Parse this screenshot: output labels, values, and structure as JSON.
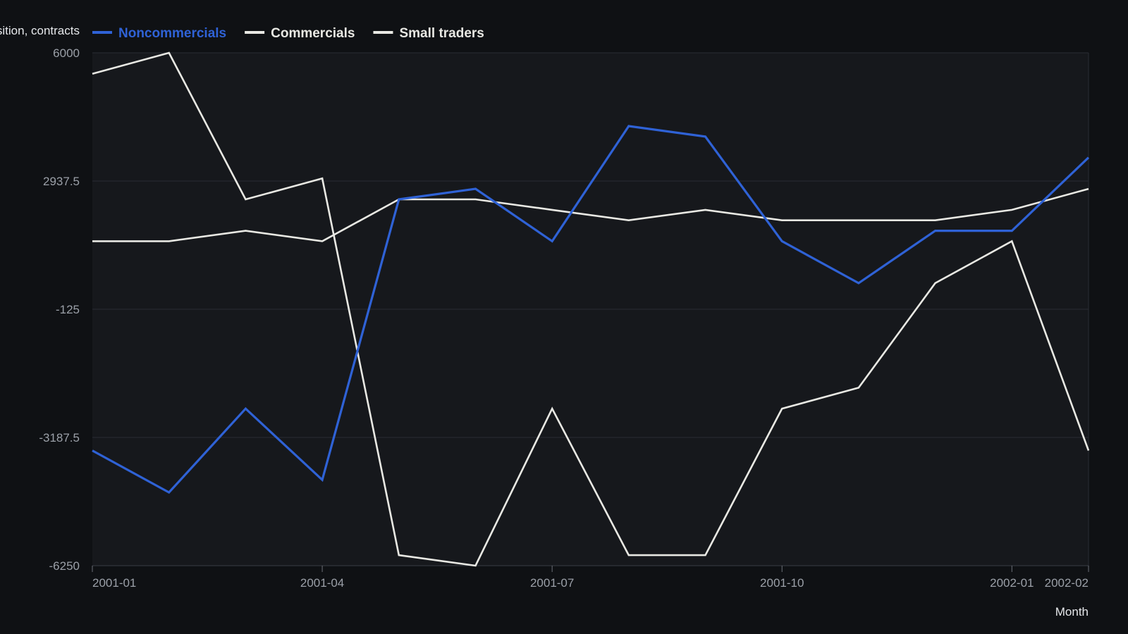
{
  "chart_data": {
    "type": "line",
    "ylabel": "Net position, contracts",
    "xlabel": "Month",
    "ylim": [
      -6250,
      6000
    ],
    "yticks": [
      6000,
      2937.5,
      -125,
      -3187.5,
      -6250
    ],
    "ytick_labels": [
      "6000",
      "2937.5",
      "-125",
      "-3187.5",
      "-6250"
    ],
    "x": [
      "2001-01",
      "2001-02",
      "2001-03",
      "2001-04",
      "2001-05",
      "2001-06",
      "2001-07",
      "2001-08",
      "2001-09",
      "2001-10",
      "2001-11",
      "2001-12",
      "2002-01",
      "2002-02"
    ],
    "xtick_labels": [
      "2001-01",
      "2001-04",
      "2001-07",
      "2001-10",
      "2002-01",
      "2002-02"
    ],
    "grid": true,
    "legend_position": "top-left",
    "background": "#16181c",
    "series": [
      {
        "name": "Noncommercials",
        "color": "#2f62d6",
        "values": [
          -3500,
          -4500,
          -2500,
          -4200,
          2500,
          2750,
          1500,
          4250,
          4000,
          1500,
          500,
          1750,
          1750,
          3500
        ]
      },
      {
        "name": "Commercials",
        "color": "#e8e8e3",
        "values": [
          5500,
          6000,
          2500,
          3000,
          -6000,
          -6250,
          -2500,
          -6000,
          -6000,
          -2500,
          -2000,
          500,
          1500,
          -3500
        ]
      },
      {
        "name": "Small traders",
        "color": "#e8e8e3",
        "values": [
          1500,
          1500,
          1750,
          1500,
          2500,
          2500,
          2250,
          2000,
          2250,
          2000,
          2000,
          2000,
          2250,
          2750
        ]
      }
    ]
  }
}
